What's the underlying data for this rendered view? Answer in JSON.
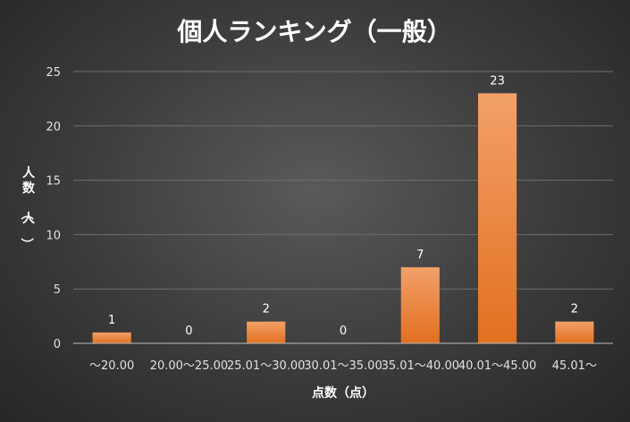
{
  "chart_data": {
    "type": "bar",
    "title": "個人ランキング（一般）",
    "xlabel": "点数（点）",
    "ylabel": "人数（人）",
    "categories": [
      "～20.00",
      "20.00～25.00",
      "25.01～30.00",
      "30.01～35.00",
      "35.01～40.00",
      "40.01～45.00",
      "45.01～"
    ],
    "values": [
      1,
      0,
      2,
      0,
      7,
      23,
      2
    ],
    "ylim": [
      0,
      25
    ],
    "yticks": [
      0,
      5,
      10,
      15,
      20,
      25
    ],
    "grid": true,
    "legend": "none",
    "colors": {
      "bar_top": "#F3A06A",
      "bar_bottom": "#E2701F",
      "text": "#FFFFFF"
    }
  }
}
